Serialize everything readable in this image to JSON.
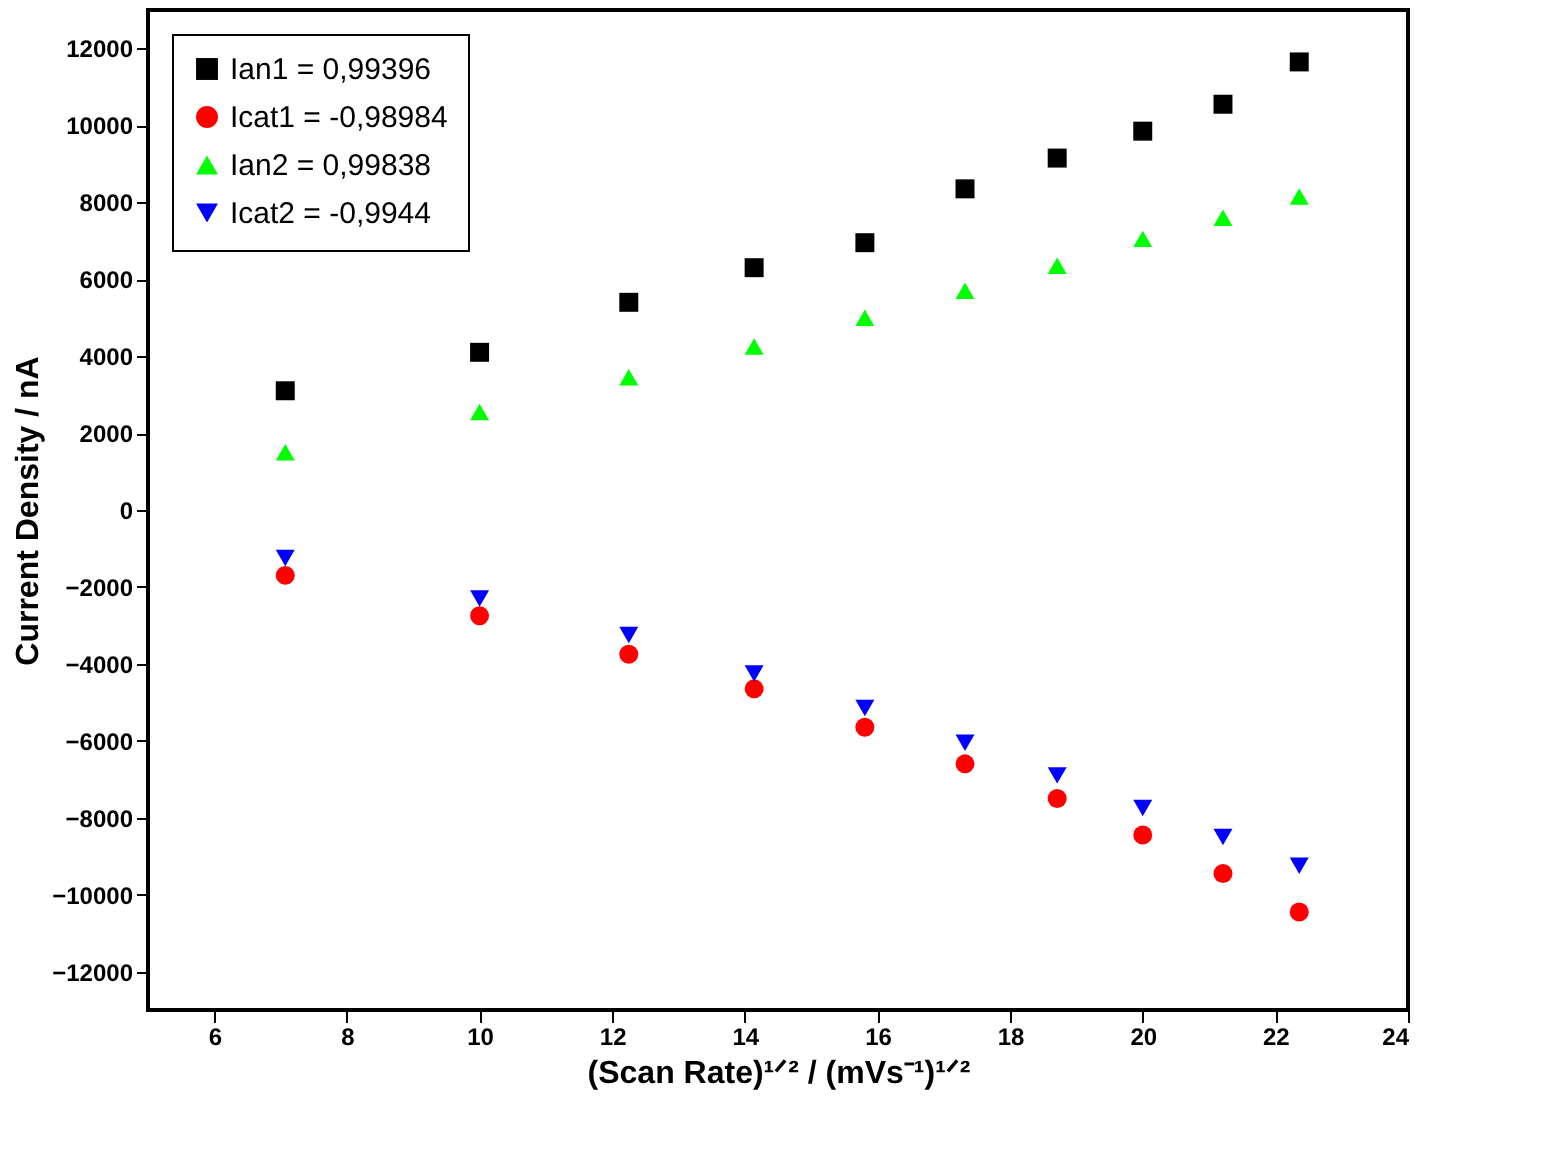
{
  "chart_data": {
    "type": "scatter",
    "xlabel": "(Scan Rate)¹ᐟ² / (mVs⁻¹)¹ᐟ²",
    "ylabel": "Current Density / nA",
    "x": [
      7.07,
      10,
      12.25,
      14.14,
      15.81,
      17.32,
      18.71,
      20,
      21.21,
      22.36
    ],
    "series": [
      {
        "name": "Ian1 = 0,99396",
        "color": "#000000",
        "marker": "square",
        "values": [
          3100,
          4100,
          5400,
          6300,
          6950,
          8350,
          9150,
          9850,
          10550,
          11650
        ]
      },
      {
        "name": "Icat1 = -0,98984",
        "color": "#ff0000",
        "marker": "circle",
        "values": [
          -1700,
          -2750,
          -3750,
          -4650,
          -5650,
          -6600,
          -7500,
          -8450,
          -9450,
          -10450
        ]
      },
      {
        "name": "Ian2 = 0,99838",
        "color": "#00ff00",
        "marker": "triangle",
        "values": [
          1500,
          2550,
          3450,
          4250,
          5000,
          5700,
          6350,
          7050,
          7600,
          8150
        ]
      },
      {
        "name": "Icat2 = -0,9944",
        "color": "#0000ff",
        "marker": "triangle-down",
        "values": [
          -1250,
          -2300,
          -3250,
          -4250,
          -5150,
          -6050,
          -6900,
          -7750,
          -8500,
          -9250
        ]
      }
    ],
    "xlim": [
      5,
      24
    ],
    "xticks": [
      6,
      8,
      10,
      12,
      14,
      16,
      18,
      20,
      22,
      24
    ],
    "ylim": [
      -13000,
      13000
    ],
    "yticks": [
      -12000,
      -10000,
      -8000,
      -6000,
      -4000,
      -2000,
      0,
      2000,
      4000,
      6000,
      8000,
      10000,
      12000
    ],
    "grid": false,
    "legend": "top left"
  }
}
